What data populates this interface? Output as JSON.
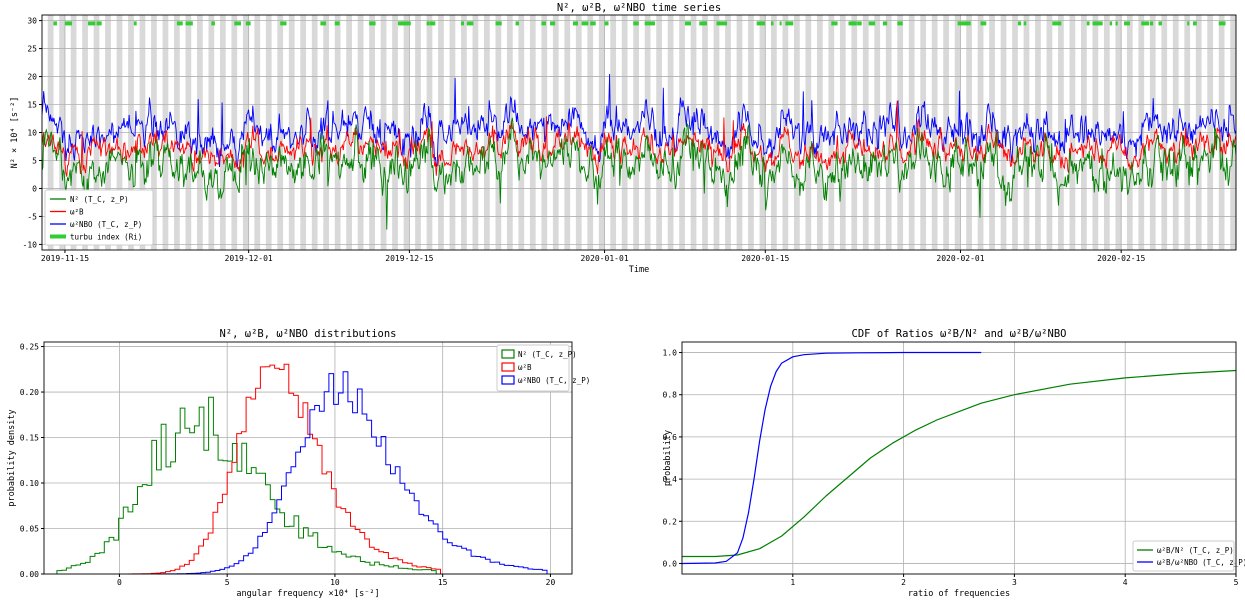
{
  "panels": [
    {
      "id": "timeseries",
      "chart_data": {
        "type": "line",
        "title": "N², ω²B, ω²NBO time series",
        "xlabel": "Time",
        "ylabel": "N² × 10⁴  [s⁻²]",
        "xlim": [
          "2019-11-13",
          "2020-02-25"
        ],
        "ylim": [
          -11,
          31
        ],
        "x_ticks": [
          "2019-11-15",
          "2019-12-01",
          "2019-12-15",
          "2020-01-01",
          "2020-01-15",
          "2020-02-01",
          "2020-02-15"
        ],
        "y_ticks": [
          -10,
          -5,
          0,
          5,
          10,
          15,
          20,
          25,
          30
        ],
        "grid": true,
        "legend_position": "lower-left",
        "series": [
          {
            "name": "N²  (T_C, z_P)",
            "color": "#008000",
            "mean": 4,
            "spread": 2.6
          },
          {
            "name": "ω²B",
            "color": "#ff0000",
            "mean": 7.2,
            "spread": 1.6
          },
          {
            "name": "ω²NBO  (T_C, z_P)",
            "color": "#0000ff",
            "mean": 10.3,
            "spread": 2.0
          },
          {
            "name": "turbu index (Ri)",
            "color": "#33cc33",
            "level": 29.5
          }
        ],
        "background_bands": "alternating daily grey bands"
      }
    },
    {
      "id": "distributions",
      "chart_data": {
        "type": "histogram",
        "title": "N², ω²B, ω²NBO distributions",
        "xlabel": "angular frequency ×10⁴ [s⁻²]",
        "ylabel": "probability density",
        "xlim": [
          -3.5,
          21
        ],
        "ylim": [
          0,
          0.255
        ],
        "x_ticks": [
          0,
          5,
          10,
          15,
          20
        ],
        "y_ticks": [
          0.0,
          0.05,
          0.1,
          0.15,
          0.2,
          0.25
        ],
        "grid": true,
        "legend_position": "top-right",
        "series": [
          {
            "name": "N²  (T_C, z_P)",
            "color": "#008000",
            "mean": 3.6,
            "sd": 2.3,
            "peak": 0.178
          },
          {
            "name": "ω²B",
            "color": "#ff0000",
            "mean": 7.1,
            "sd": 1.6,
            "peak": 0.245
          },
          {
            "name": "ω²NBO  (T_C, z_P)",
            "color": "#0000ff",
            "mean": 10.2,
            "sd": 2.0,
            "peak": 0.205
          }
        ]
      }
    },
    {
      "id": "cdf",
      "chart_data": {
        "type": "line",
        "title": "CDF of Ratios ω²B/N² and ω²B/ω²NBO",
        "xlabel": "ratio of frequencies",
        "ylabel": "probability",
        "xlim": [
          0,
          5
        ],
        "ylim": [
          -0.05,
          1.05
        ],
        "x_ticks": [
          1,
          2,
          3,
          4,
          5
        ],
        "y_ticks": [
          0.0,
          0.2,
          0.4,
          0.6,
          0.8,
          1.0
        ],
        "grid": true,
        "legend_position": "lower-right",
        "series": [
          {
            "name": "ω²B/N²  (T_C, z_P)",
            "color": "#008000",
            "x": [
              0,
              0.3,
              0.5,
              0.7,
              0.9,
              1.1,
              1.3,
              1.5,
              1.7,
              1.9,
              2.1,
              2.3,
              2.5,
              2.7,
              3.0,
              3.5,
              4.0,
              4.5,
              5.0
            ],
            "y": [
              0.033,
              0.033,
              0.04,
              0.07,
              0.13,
              0.22,
              0.32,
              0.41,
              0.5,
              0.57,
              0.63,
              0.68,
              0.72,
              0.76,
              0.8,
              0.85,
              0.88,
              0.9,
              0.915
            ]
          },
          {
            "name": "ω²B/ω²NBO  (T_C, z_P)",
            "color": "#0000ff",
            "x": [
              0,
              0.3,
              0.4,
              0.5,
              0.55,
              0.6,
              0.65,
              0.7,
              0.75,
              0.8,
              0.85,
              0.9,
              1.0,
              1.1,
              1.3,
              1.6,
              2.0,
              2.7
            ],
            "y": [
              0.0,
              0.002,
              0.01,
              0.05,
              0.12,
              0.24,
              0.4,
              0.58,
              0.73,
              0.84,
              0.91,
              0.95,
              0.98,
              0.99,
              0.997,
              0.999,
              1.0,
              1.0
            ]
          }
        ]
      }
    }
  ]
}
